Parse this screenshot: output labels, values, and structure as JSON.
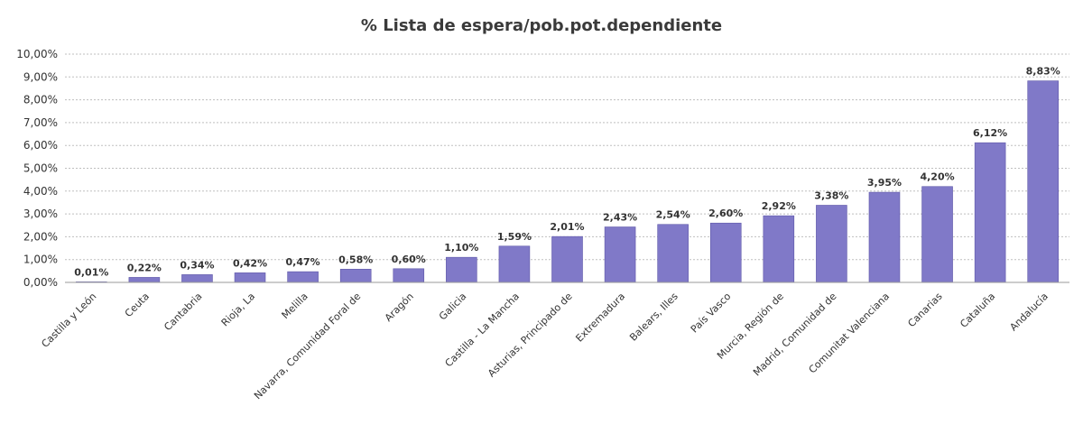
{
  "chart_data": {
    "type": "bar",
    "title": "% Lista de espera/pob.pot.dependiente",
    "xlabel": "",
    "ylabel": "",
    "ylim": [
      0,
      10
    ],
    "yticks": [
      "0,00%",
      "1,00%",
      "2,00%",
      "3,00%",
      "4,00%",
      "5,00%",
      "6,00%",
      "7,00%",
      "8,00%",
      "9,00%",
      "10,00%"
    ],
    "grid": true,
    "legend": "none",
    "bar_color": "#8079c8",
    "bar_border_color": "#5e57a8",
    "categories": [
      "Castilla y León",
      "Ceuta",
      "Cantabria",
      "Rioja, La",
      "Melilla",
      "Navarra, Comunidad Foral de",
      "Aragón",
      "Galicia",
      "Castilla - La Mancha",
      "Asturias, Principado de",
      "Extremadura",
      "Balears, Illes",
      "País Vasco",
      "Murcia, Región de",
      "Madrid, Comunidad de",
      "Comunitat Valenciana",
      "Canarias",
      "Cataluña",
      "Andalucía"
    ],
    "values": [
      0.01,
      0.22,
      0.34,
      0.42,
      0.47,
      0.58,
      0.6,
      1.1,
      1.59,
      2.01,
      2.43,
      2.54,
      2.6,
      2.92,
      3.38,
      3.95,
      4.2,
      6.12,
      8.83
    ],
    "data_labels": [
      "0,01%",
      "0,22%",
      "0,34%",
      "0,42%",
      "0,47%",
      "0,58%",
      "0,60%",
      "1,10%",
      "1,59%",
      "2,01%",
      "2,43%",
      "2,54%",
      "2,60%",
      "2,92%",
      "3,38%",
      "3,95%",
      "4,20%",
      "6,12%",
      "8,83%"
    ]
  }
}
